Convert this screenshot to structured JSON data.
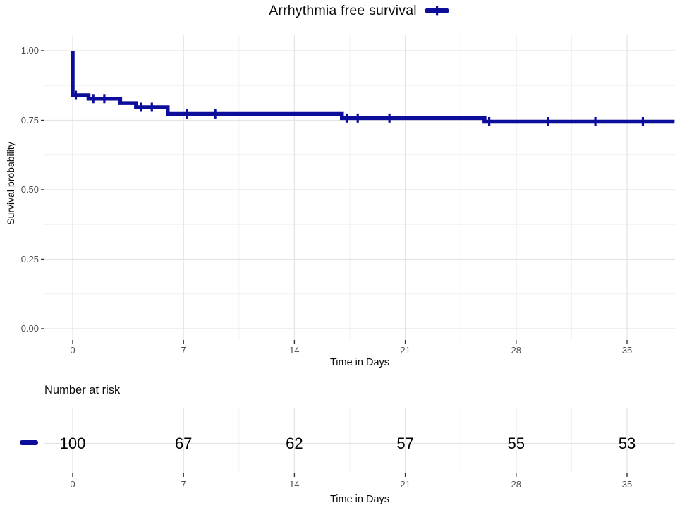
{
  "colors": {
    "curve": "#0D0D9C",
    "grid_major": "#E4E4E4",
    "grid_minor": "#F1F1F1",
    "axis_text": "#4D4D4D",
    "tick_mark": "#333333",
    "text": "#000000"
  },
  "chart_data": {
    "type": "line",
    "subtype": "kaplan-meier-step-curve",
    "title": "Arrhythmia free survival",
    "xlabel": "Time in Days",
    "ylabel": "Survival probability",
    "xlim": [
      -1.8,
      38
    ],
    "ylim": [
      -0.05,
      1.05
    ],
    "grid": "major+minor",
    "legend_position": "top-right-of-title",
    "xticks": [
      0,
      7,
      14,
      21,
      28,
      35
    ],
    "xtick_labels": [
      "0",
      "7",
      "14",
      "21",
      "28",
      "35"
    ],
    "yticks": [
      0,
      0.25,
      0.5,
      0.75,
      1.0
    ],
    "ytick_labels": [
      "0.00",
      "0.25",
      "0.50",
      "0.75",
      "1.00"
    ],
    "series": [
      {
        "name": "Arrhythmia free survival",
        "color": "#0D0D9C",
        "steps": [
          [
            0,
            1.0
          ],
          [
            0,
            0.84
          ],
          [
            1,
            0.828
          ],
          [
            3,
            0.812
          ],
          [
            4,
            0.797
          ],
          [
            6,
            0.773
          ],
          [
            17,
            0.758
          ],
          [
            26,
            0.745
          ],
          [
            38,
            0.745
          ]
        ],
        "censor_marks": [
          [
            0.2,
            0.84
          ],
          [
            1.3,
            0.828
          ],
          [
            2,
            0.828
          ],
          [
            4.3,
            0.797
          ],
          [
            5,
            0.797
          ],
          [
            7.2,
            0.773
          ],
          [
            9,
            0.773
          ],
          [
            17.3,
            0.758
          ],
          [
            18,
            0.758
          ],
          [
            20,
            0.758
          ],
          [
            26.3,
            0.745
          ],
          [
            30,
            0.745
          ],
          [
            33,
            0.745
          ],
          [
            36,
            0.745
          ]
        ]
      }
    ],
    "risk_table": {
      "title": "Number at risk",
      "xlabel": "Time in Days",
      "times": [
        0,
        7,
        14,
        21,
        28,
        35
      ],
      "values": [
        100,
        67,
        62,
        57,
        55,
        53
      ]
    }
  }
}
